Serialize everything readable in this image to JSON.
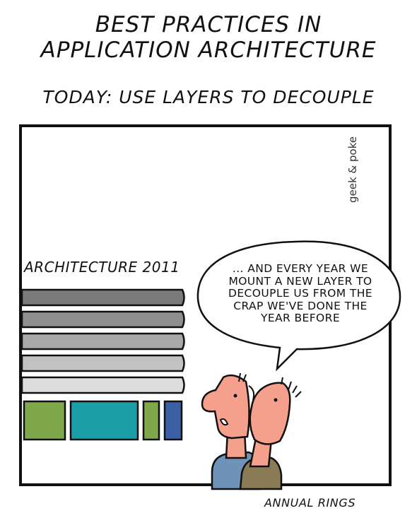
{
  "header": {
    "title_line1": "BEST PRACTICES IN",
    "title_line2": "APPLICATION ARCHITECTURE",
    "subtitle": "TODAY: USE LAYERS TO DECOUPLE"
  },
  "panel": {
    "watermark": "geek & poke",
    "architecture_label": "ARCHITECTURE 2011",
    "speech_lines": [
      "... AND EVERY YEAR WE",
      "MOUNT A NEW LAYER TO",
      "DECOUPLE US FROM THE",
      "CRAP WE'VE DONE THE",
      "YEAR BEFORE"
    ],
    "colors": {
      "layer_top": "#7a7a7a",
      "layer_bottom": "#dcdcdc",
      "block_green": "#7fa84a",
      "block_teal": "#1a9fa8",
      "block_blue": "#3d5fa6",
      "skin": "#f4a08c",
      "shirt_left": "#6f93b8",
      "shirt_right": "#8a7a55"
    }
  },
  "caption": "ANNUAL RINGS"
}
